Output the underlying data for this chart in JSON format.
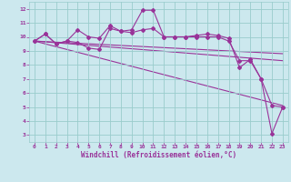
{
  "line1_x": [
    0,
    1,
    2,
    3,
    4,
    5,
    6,
    7,
    8,
    9,
    10,
    11,
    12,
    13,
    14,
    15,
    16,
    17,
    18,
    19,
    20,
    21,
    22,
    23
  ],
  "line1_y": [
    9.7,
    10.2,
    9.5,
    9.7,
    9.6,
    9.2,
    9.1,
    10.6,
    10.4,
    10.3,
    10.5,
    10.6,
    10.0,
    10.0,
    10.0,
    10.1,
    10.2,
    10.1,
    9.9,
    7.8,
    8.4,
    7.0,
    5.1,
    5.0
  ],
  "line2_x": [
    0,
    1,
    2,
    3,
    4,
    5,
    6,
    7,
    8,
    9,
    10,
    11,
    12,
    13,
    14,
    15,
    16,
    17,
    18,
    19,
    20,
    21,
    22,
    23
  ],
  "line2_y": [
    9.7,
    10.2,
    9.5,
    9.7,
    10.5,
    10.0,
    9.9,
    10.8,
    10.4,
    10.5,
    11.9,
    11.9,
    10.0,
    10.0,
    10.0,
    10.0,
    10.0,
    10.0,
    9.7,
    8.3,
    8.3,
    7.0,
    3.1,
    5.0
  ],
  "line3_x": [
    0,
    23
  ],
  "line3_y": [
    9.7,
    5.1
  ],
  "line4_x": [
    0,
    23
  ],
  "line4_y": [
    9.7,
    8.3
  ],
  "line5_x": [
    0,
    23
  ],
  "line5_y": [
    9.7,
    8.8
  ],
  "color": "#993399",
  "bg_color": "#cce8ee",
  "grid_color": "#99cccc",
  "xlabel": "Windchill (Refroidissement éolien,°C)",
  "ylim": [
    2.5,
    12.5
  ],
  "xlim": [
    -0.5,
    23.5
  ],
  "yticks": [
    3,
    4,
    5,
    6,
    7,
    8,
    9,
    10,
    11,
    12
  ],
  "xticks": [
    0,
    1,
    2,
    3,
    4,
    5,
    6,
    7,
    8,
    9,
    10,
    11,
    12,
    13,
    14,
    15,
    16,
    17,
    18,
    19,
    20,
    21,
    22,
    23
  ]
}
